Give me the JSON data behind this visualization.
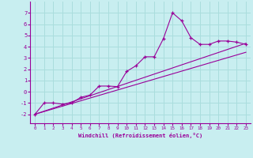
{
  "title": "",
  "xlabel": "Windchill (Refroidissement éolien,°C)",
  "ylabel": "",
  "bg_color": "#c8eef0",
  "grid_color": "#aadddd",
  "line_color": "#990099",
  "xlim": [
    -0.5,
    23.5
  ],
  "ylim": [
    -2.8,
    8.0
  ],
  "yticks": [
    -2,
    -1,
    0,
    1,
    2,
    3,
    4,
    5,
    6,
    7
  ],
  "xticks": [
    0,
    1,
    2,
    3,
    4,
    5,
    6,
    7,
    8,
    9,
    10,
    11,
    12,
    13,
    14,
    15,
    16,
    17,
    18,
    19,
    20,
    21,
    22,
    23
  ],
  "series1_x": [
    0,
    1,
    2,
    3,
    4,
    5,
    6,
    7,
    8,
    9,
    10,
    11,
    12,
    13,
    14,
    15,
    16,
    17,
    18,
    19,
    20,
    21,
    22,
    23
  ],
  "series1_y": [
    -2.0,
    -1.0,
    -1.0,
    -1.1,
    -1.0,
    -0.5,
    -0.3,
    0.5,
    0.5,
    0.45,
    1.8,
    2.3,
    3.1,
    3.1,
    4.7,
    7.0,
    6.3,
    4.8,
    4.2,
    4.2,
    4.5,
    4.5,
    4.4,
    4.2
  ],
  "series2_x": [
    0,
    23
  ],
  "series2_y": [
    -2.0,
    3.5
  ],
  "series3_x": [
    0,
    23
  ],
  "series3_y": [
    -2.0,
    4.3
  ],
  "marker": "+"
}
